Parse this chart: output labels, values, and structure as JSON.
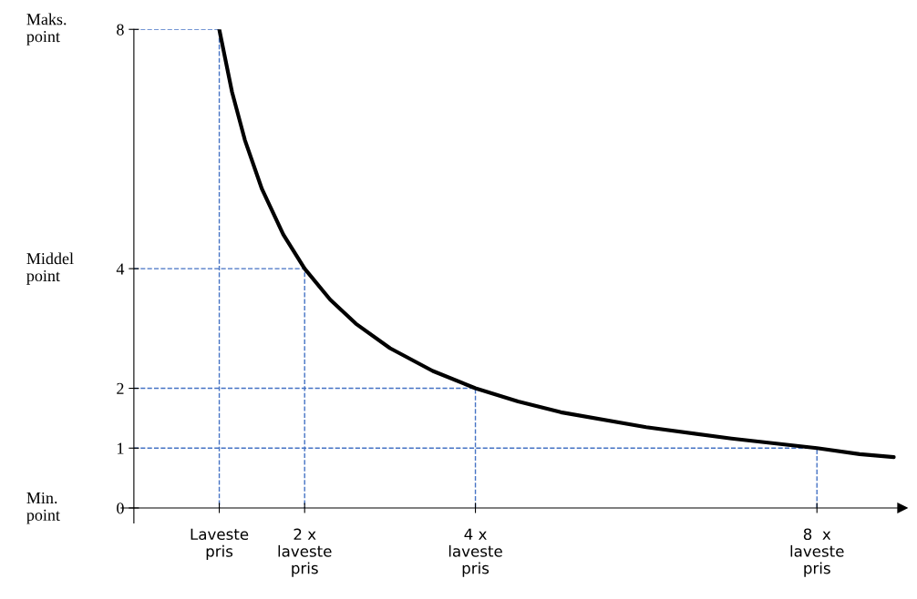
{
  "chart_data": {
    "type": "line",
    "x": [
      1,
      1.15,
      1.3,
      1.5,
      1.75,
      2,
      2.3,
      2.6,
      3,
      3.5,
      4,
      4.5,
      5,
      6,
      7,
      8,
      8.5,
      8.9
    ],
    "series": [
      {
        "color": "#000000",
        "values": [
          8,
          6.95,
          6.15,
          5.33,
          4.57,
          4,
          3.48,
          3.08,
          2.67,
          2.29,
          2,
          1.78,
          1.6,
          1.35,
          1.16,
          1,
          0.9,
          0.85
        ]
      }
    ],
    "xlim": [
      0,
      9
    ],
    "ylim": [
      0,
      8
    ],
    "xticks": [
      {
        "value": 1,
        "label": "Laveste\npris"
      },
      {
        "value": 2,
        "label": "2 x\nlaveste\npris"
      },
      {
        "value": 4,
        "label": "4 x\nlaveste\npris"
      },
      {
        "value": 8,
        "label": "8  x\nlaveste\npris"
      }
    ],
    "yticks": [
      0,
      1,
      2,
      4,
      8
    ],
    "ref_lines": [
      {
        "axis": "y",
        "value": 8,
        "color": "#4472c4",
        "line_style": "dashed"
      },
      {
        "axis": "y",
        "value": 4,
        "color": "#4472c4",
        "line_style": "dashed"
      },
      {
        "axis": "y",
        "value": 2,
        "color": "#4472c4",
        "line_style": "dashed"
      },
      {
        "axis": "y",
        "value": 1,
        "color": "#4472c4",
        "line_style": "dashed"
      }
    ],
    "annotations": [
      "Maks.\npoint",
      "Middel\npoint",
      "Min.\npoint"
    ],
    "marker": "none",
    "line_style": "solid",
    "grid": false,
    "legend": false
  }
}
